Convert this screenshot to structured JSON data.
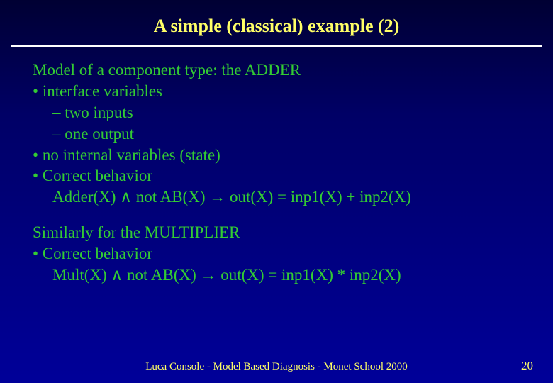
{
  "title": "A simple (classical) example (2)",
  "lines": {
    "a": "Model of a component type:  the ADDER",
    "b": "interface variables",
    "c": "two inputs",
    "d": "one output",
    "e": "no internal variables (state)",
    "f": "Correct behavior",
    "g": "Adder(X) ∧ not AB(X) → out(X) = inp1(X) + inp2(X)",
    "h": "Similarly for the MULTIPLIER",
    "i": "Correct behavior",
    "j": "Mult(X) ∧ not AB(X) → out(X) = inp1(X) * inp2(X)"
  },
  "footer": "Luca Console - Model Based Diagnosis - Monet School 2000",
  "page": "20",
  "colors": {
    "title": "#ffff66",
    "body": "#33cc33",
    "footer": "#ffff66",
    "rule": "#ffffff",
    "bg_top": "#000033",
    "bg_bottom": "#000099"
  },
  "fonts": {
    "family": "Times New Roman",
    "title_size_pt": 20,
    "body_size_pt": 17,
    "footer_size_pt": 11
  }
}
